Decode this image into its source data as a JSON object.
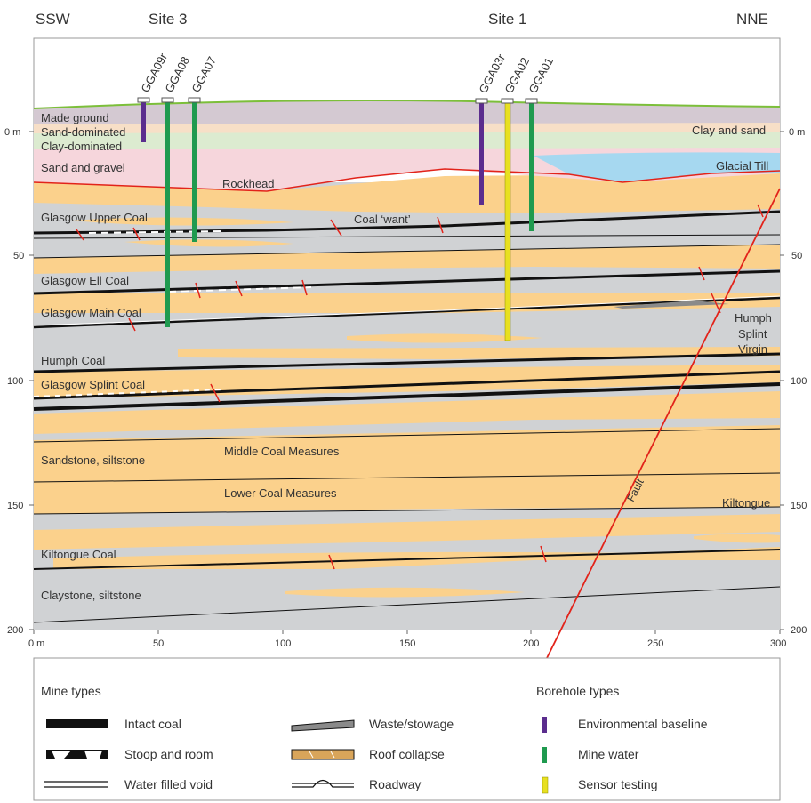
{
  "header": {
    "left_direction": "SSW",
    "right_direction": "NNE",
    "site_left": "Site 3",
    "site_right": "Site 1"
  },
  "boreholes": [
    {
      "id": "GGA09r",
      "type": "environmental",
      "color": "#5b2d8e"
    },
    {
      "id": "GGA08",
      "type": "mine-water",
      "color": "#1f9a4f"
    },
    {
      "id": "GGA07",
      "type": "mine-water",
      "color": "#1f9a4f"
    },
    {
      "id": "GGA03r",
      "type": "environmental",
      "color": "#5b2d8e"
    },
    {
      "id": "GGA02",
      "type": "sensor",
      "color": "#e8e020"
    },
    {
      "id": "GGA01",
      "type": "mine-water",
      "color": "#1f9a4f"
    }
  ],
  "axis": {
    "x_ticks": [
      "0 m",
      "50",
      "100",
      "150",
      "200",
      "250",
      "300"
    ],
    "y_left_ticks": [
      "0 m",
      "50",
      "100",
      "150",
      "200"
    ],
    "y_right_ticks": [
      "0 m",
      "50",
      "100",
      "150",
      "200"
    ]
  },
  "labels": {
    "made_ground": "Made ground",
    "sand_dominated": "Sand-dominated",
    "clay_dominated": "Clay-dominated",
    "sand_gravel": "Sand and gravel",
    "rockhead": "Rockhead",
    "clay_sand": "Clay and sand",
    "glacial_till": "Glacial Till",
    "glasgow_upper": "Glasgow Upper Coal",
    "coal_want": "Coal ‘want’",
    "glasgow_ell": "Glasgow Ell Coal",
    "glasgow_main": "Glasgow Main Coal",
    "humph_coal": "Humph Coal",
    "glasgow_splint": "Glasgow Splint Coal",
    "humph": "Humph",
    "splint": "Splint",
    "virgin": "Virgin",
    "sandstone": "Sandstone, siltstone",
    "middle_cm": "Middle Coal Measures",
    "lower_cm": "Lower Coal Measures",
    "fault": "Fault",
    "kiltongue": "Kiltongue",
    "kiltongue_coal": "Kiltongue Coal",
    "claystone": "Claystone, siltstone"
  },
  "legend": {
    "mine_types_title": "Mine types",
    "borehole_types_title": "Borehole types",
    "intact_coal": "Intact coal",
    "stoop_room": "Stoop and room",
    "water_void": "Water filled void",
    "waste": "Waste/stowage",
    "roof_collapse": "Roof collapse",
    "roadway": "Roadway",
    "environmental": "Environmental baseline",
    "mine_water": "Mine water",
    "sensor": "Sensor testing"
  },
  "colors": {
    "background_rock": "#d0d2d4",
    "sandstone": "#fbd18c",
    "made_ground": "#d4c9d2",
    "clay_dominated": "#dcebd0",
    "sand_gravel": "#f6d6dc",
    "glacial_till": "#a6d8f0",
    "rockhead_line": "#e2231a",
    "surface_line": "#7cbf3a",
    "fault_line": "#e2231a"
  }
}
